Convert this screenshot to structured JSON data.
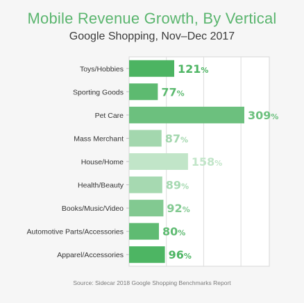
{
  "header": {
    "title": "Mobile Revenue Growth, By Vertical",
    "subtitle": "Google Shopping, Nov–Dec 2017"
  },
  "footer": {
    "source": "Source: Sidecar 2018 Google Shopping Benchmarks Report"
  },
  "chart_data": {
    "type": "bar",
    "orientation": "horizontal",
    "title": "Mobile Revenue Growth, By Vertical",
    "subtitle": "Google Shopping, Nov–Dec 2017",
    "categories": [
      "Toys/Hobbies",
      "Sporting Goods",
      "Pet Care",
      "Mass Merchant",
      "House/Home",
      "Health/Beauty",
      "Books/Music/Video",
      "Automotive Parts/Accessories",
      "Apparel/Accessories"
    ],
    "values": [
      121,
      77,
      309,
      87,
      158,
      89,
      92,
      80,
      96
    ],
    "value_labels": [
      "121%",
      "77%",
      "309%",
      "87%",
      "158%",
      "89%",
      "92%",
      "80%",
      "96%"
    ],
    "unit": "%",
    "bar_colors": [
      "#4cb462",
      "#5dba70",
      "#6cc07e",
      "#a3d7ae",
      "#c1e5c8",
      "#a6d9b1",
      "#82c991",
      "#5fbb72",
      "#4db563"
    ],
    "xlim": [
      0,
      320
    ],
    "grid": true,
    "legend": "none"
  }
}
